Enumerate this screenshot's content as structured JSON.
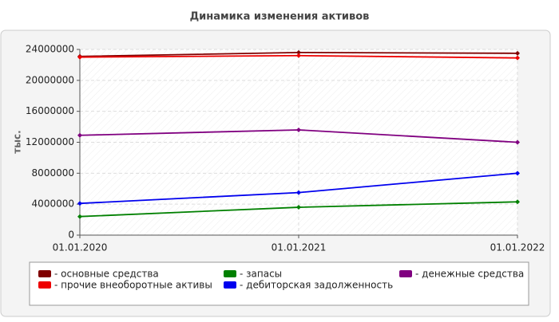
{
  "chart_data": {
    "type": "line",
    "title": "Динамика изменения активов",
    "y_label": "тыс.",
    "categories": [
      "01.01.2020",
      "01.01.2021",
      "01.01.2022"
    ],
    "ylim": [
      0,
      24000000
    ],
    "yticks": [
      0,
      4000000,
      8000000,
      12000000,
      16000000,
      20000000,
      24000000
    ],
    "grid": true,
    "series": [
      {
        "name": "- основные средства",
        "color": "#800000",
        "values": [
          23100000,
          23600000,
          23500000
        ]
      },
      {
        "name": "- прочие внеоборотные активы",
        "color": "#ee0000",
        "values": [
          23000000,
          23200000,
          22900000
        ]
      },
      {
        "name": "- запасы",
        "color": "#008000",
        "values": [
          2400000,
          3600000,
          4300000
        ]
      },
      {
        "name": "- дебиторская задолженность",
        "color": "#0000ee",
        "values": [
          4100000,
          5500000,
          8000000
        ]
      },
      {
        "name": "- денежные средства",
        "color": "#800080",
        "values": [
          12900000,
          13600000,
          12000000
        ]
      }
    ]
  }
}
